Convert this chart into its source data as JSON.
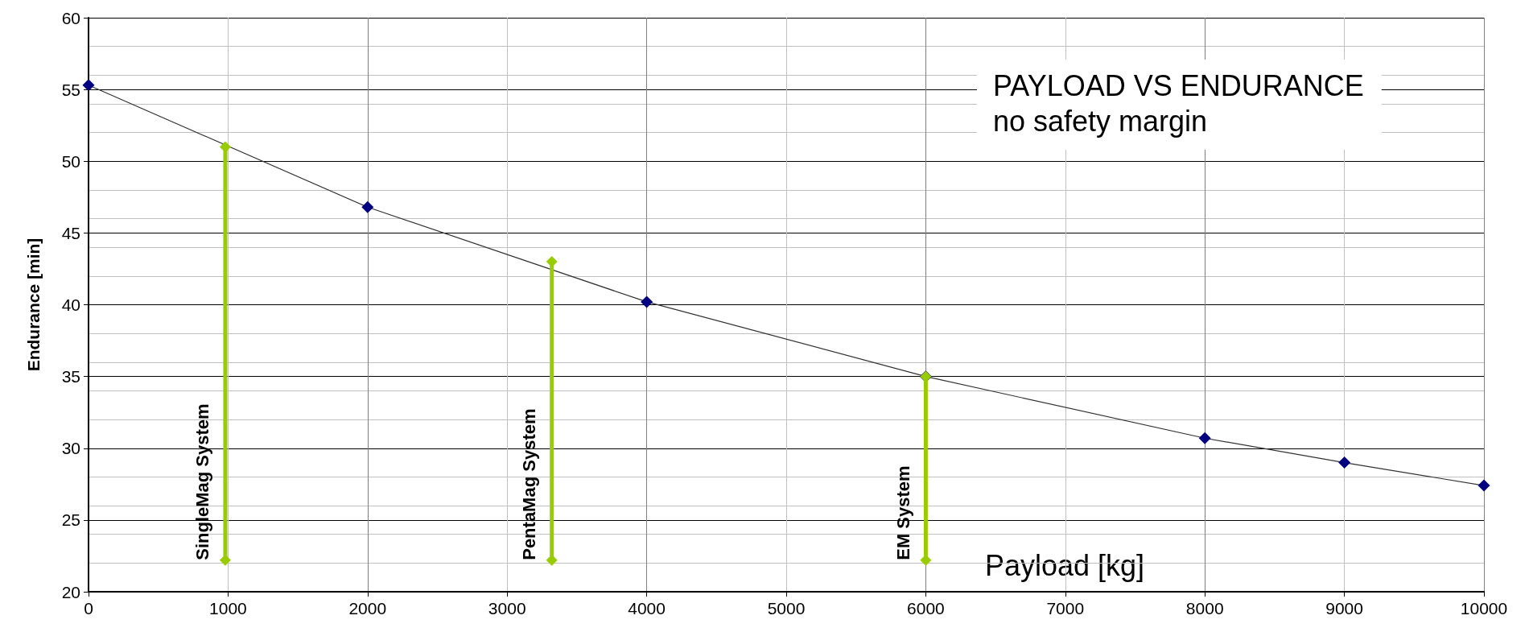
{
  "chart_data": {
    "type": "line",
    "title": "PAYLOAD VS ENDURANCE",
    "subtitle": "no safety margin",
    "xlabel": "Payload [kg]",
    "ylabel": "Endurance [min]",
    "xlim": [
      0,
      10000
    ],
    "xticks": [
      0,
      1000,
      2000,
      3000,
      4000,
      5000,
      6000,
      7000,
      8000,
      9000,
      10000
    ],
    "ylim": [
      20,
      60
    ],
    "yticks": [
      20,
      25,
      30,
      35,
      40,
      45,
      50,
      55,
      60
    ],
    "grid": true,
    "marker": "diamond",
    "line_style": "solid",
    "series": [
      {
        "color": "#000080",
        "x": [
          0,
          2000,
          4000,
          6000,
          8000,
          9000,
          10000
        ],
        "values": [
          55.3,
          46.8,
          40.2,
          35,
          30.7,
          29,
          27.4
        ]
      },
      {
        "name": "SingleMag System",
        "color": "#99cc00",
        "x": [
          980,
          980
        ],
        "values": [
          22.2,
          51
        ]
      },
      {
        "name": "PentaMag System",
        "color": "#99cc00",
        "x": [
          3320,
          3320
        ],
        "values": [
          22.2,
          43
        ]
      },
      {
        "name": "EM System",
        "color": "#99cc00",
        "x": [
          6000,
          6000
        ],
        "values": [
          22.2,
          35
        ]
      }
    ]
  }
}
